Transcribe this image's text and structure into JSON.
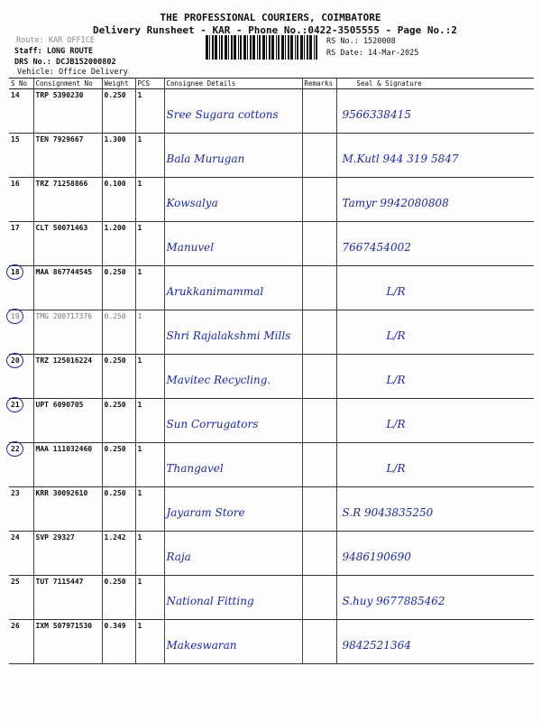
{
  "header": {
    "title": "THE PROFESSIONAL COURIERS, COIMBATORE",
    "subtitle": "Delivery Runsheet - KAR - Phone No.:0422-3505555 - Page No.:2",
    "route": "Route: KAR OFFICE",
    "staff": "Staff: LONG ROUTE",
    "drs_no": "DRS No.: DCJB152000802",
    "vehicle": "Vehicle: Office Delivery",
    "rs_no": "RS No.: 1520008",
    "rs_date": "RS Date: 14-Mar-2025"
  },
  "table": {
    "columns": [
      "S No",
      "Consignment No",
      "Weight",
      "PCS",
      "Consignee Details",
      "Remarks",
      "Seal & Signature"
    ],
    "rows": [
      {
        "sno": "14",
        "cons": "TRP 5390230",
        "weight": "0.250",
        "pcs": "1",
        "consignee": "Sree Sugara cottons",
        "remarks": "",
        "signature": "9566338415",
        "circled": false
      },
      {
        "sno": "15",
        "cons": "TEN 7929667",
        "weight": "1.300",
        "pcs": "1",
        "consignee": "Bala Murugan",
        "remarks": "",
        "signature": "M.Kutl 944 319 5847",
        "circled": false
      },
      {
        "sno": "16",
        "cons": "TRZ 71258866",
        "weight": "0.100",
        "pcs": "1",
        "consignee": "Kowsalya",
        "remarks": "",
        "signature": "Tamyr 9942080808",
        "circled": false
      },
      {
        "sno": "17",
        "cons": "CLT 50071463",
        "weight": "1.200",
        "pcs": "1",
        "consignee": "Manuvel",
        "remarks": "",
        "signature": "7667454002",
        "circled": false
      },
      {
        "sno": "18",
        "cons": "MAA 867744545",
        "weight": "0.250",
        "pcs": "1",
        "consignee": "Arukkanimammal",
        "remarks": "",
        "signature": "L/R",
        "circled": true
      },
      {
        "sno": "19",
        "cons": "TMG 200717376",
        "weight": "0.250",
        "pcs": "1",
        "consignee": "Shri Rajalakshmi Mills",
        "remarks": "",
        "signature": "L/R",
        "circled": true,
        "faded": true
      },
      {
        "sno": "20",
        "cons": "TRZ 125016224",
        "weight": "0.250",
        "pcs": "1",
        "consignee": "Mavitec Recycling.",
        "remarks": "",
        "signature": "L/R",
        "circled": true
      },
      {
        "sno": "21",
        "cons": "UPT 6090705",
        "weight": "0.250",
        "pcs": "1",
        "consignee": "Sun Corrugators",
        "remarks": "",
        "signature": "L/R",
        "circled": true
      },
      {
        "sno": "22",
        "cons": "MAA 111032460",
        "weight": "0.250",
        "pcs": "1",
        "consignee": "Thangavel",
        "remarks": "",
        "signature": "L/R",
        "circled": true
      },
      {
        "sno": "23",
        "cons": "KRR 30092610",
        "weight": "0.250",
        "pcs": "1",
        "consignee": "Jayaram Store",
        "remarks": "",
        "signature": "S.R 9043835250",
        "circled": false
      },
      {
        "sno": "24",
        "cons": "SVP 29327",
        "weight": "1.242",
        "pcs": "1",
        "consignee": "Raja",
        "remarks": "",
        "signature": "9486190690",
        "circled": false
      },
      {
        "sno": "25",
        "cons": "TUT 7115447",
        "weight": "0.250",
        "pcs": "1",
        "consignee": "National Fitting",
        "remarks": "",
        "signature": "S.huy 9677885462",
        "circled": false
      },
      {
        "sno": "26",
        "cons": "IXM 507971530",
        "weight": "0.349",
        "pcs": "1",
        "consignee": "Makeswaran",
        "remarks": "",
        "signature": "9842521364",
        "circled": false
      }
    ]
  },
  "colors": {
    "ink": "#1a2aa8",
    "print": "#111111"
  }
}
